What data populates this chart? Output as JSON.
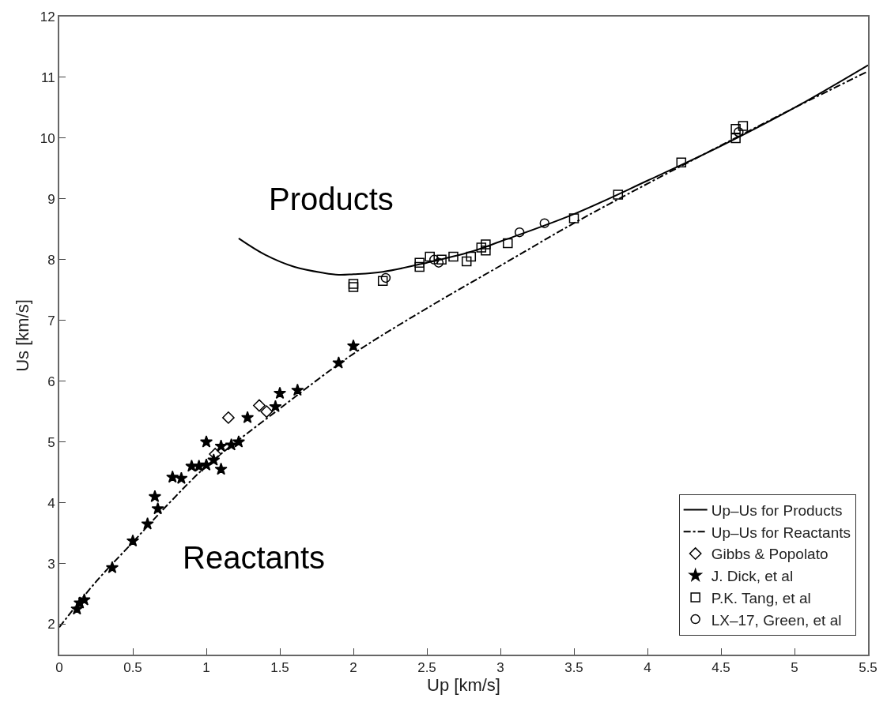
{
  "chart_data": {
    "type": "scatter",
    "xlabel": "Up [km/s]",
    "ylabel": "Us [km/s]",
    "xlim": [
      0,
      5.5
    ],
    "ylim": [
      1.5,
      12
    ],
    "xticks": [
      0,
      0.5,
      1,
      1.5,
      2,
      2.5,
      3,
      3.5,
      4,
      4.5,
      5,
      5.5
    ],
    "yticks": [
      2,
      3,
      4,
      5,
      6,
      7,
      8,
      9,
      10,
      11,
      12
    ],
    "legend": "bottom right",
    "annotations": [
      "Products",
      "Reactants"
    ],
    "series": [
      {
        "name": "Up–Us for Products",
        "type": "line",
        "line_style": "solid",
        "marker": "none",
        "color": "#000000",
        "x": [
          1.22,
          1.4,
          1.6,
          1.8,
          1.9,
          2.0,
          2.2,
          2.5,
          2.8,
          3.0,
          3.5,
          4.0,
          4.5,
          5.0,
          5.5
        ],
        "values": [
          8.35,
          8.08,
          7.88,
          7.78,
          7.75,
          7.76,
          7.8,
          7.95,
          8.13,
          8.3,
          8.75,
          9.3,
          9.87,
          10.5,
          11.2
        ]
      },
      {
        "name": "Up–Us for Reactants",
        "type": "line",
        "line_style": "dashdot",
        "marker": "none",
        "color": "#000000",
        "x": [
          0,
          0.25,
          0.5,
          0.75,
          1.0,
          1.5,
          2.0,
          2.5,
          3.0,
          3.5,
          4.0,
          4.5,
          5.0,
          5.5
        ],
        "values": [
          1.95,
          2.7,
          3.35,
          4.0,
          4.6,
          5.55,
          6.45,
          7.2,
          7.9,
          8.6,
          9.25,
          9.88,
          10.5,
          11.1
        ]
      },
      {
        "name": "Gibbs & Popolato",
        "marker": "diamond",
        "color": "#000000",
        "x": [
          1.15,
          1.36,
          1.41,
          1.06
        ],
        "values": [
          5.4,
          5.6,
          5.5,
          4.8
        ]
      },
      {
        "name": "J. Dick, et al",
        "marker": "star",
        "color": "#000000",
        "x": [
          0.12,
          0.14,
          0.17,
          0.36,
          0.5,
          0.6,
          0.67,
          0.65,
          0.77,
          0.83,
          0.9,
          0.95,
          1.0,
          1.0,
          1.05,
          1.1,
          1.1,
          1.17,
          1.22,
          1.28,
          1.47,
          1.5,
          1.62,
          1.9,
          2.0
        ],
        "values": [
          2.25,
          2.35,
          2.4,
          2.93,
          3.37,
          3.65,
          3.9,
          4.1,
          4.42,
          4.4,
          4.6,
          4.6,
          4.62,
          5.0,
          4.7,
          4.55,
          4.93,
          4.95,
          5.0,
          5.4,
          5.58,
          5.8,
          5.85,
          6.3,
          6.58
        ]
      },
      {
        "name": "P.K. Tang, et al",
        "marker": "square",
        "color": "#000000",
        "x": [
          2.0,
          2.0,
          2.2,
          2.45,
          2.45,
          2.52,
          2.6,
          2.68,
          2.77,
          2.8,
          2.87,
          2.9,
          2.9,
          3.05,
          3.5,
          3.8,
          4.23,
          4.6,
          4.6,
          4.65
        ],
        "values": [
          7.6,
          7.55,
          7.65,
          7.95,
          7.88,
          8.05,
          8.0,
          8.05,
          7.97,
          8.05,
          8.2,
          8.25,
          8.15,
          8.27,
          8.68,
          9.07,
          9.6,
          10.0,
          10.15,
          10.2
        ]
      },
      {
        "name": "LX–17, Green, et al",
        "marker": "circle",
        "color": "#000000",
        "x": [
          2.22,
          2.55,
          2.58,
          3.13,
          3.3,
          4.62
        ],
        "values": [
          7.7,
          8.0,
          7.95,
          8.45,
          8.6,
          10.1
        ]
      }
    ]
  }
}
